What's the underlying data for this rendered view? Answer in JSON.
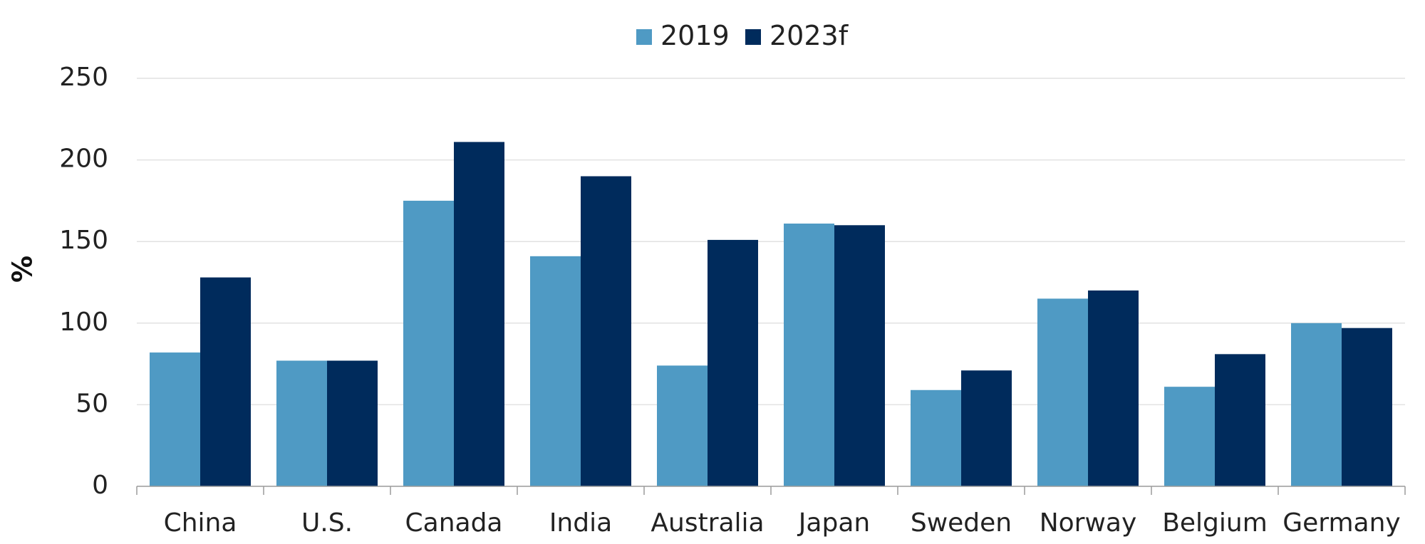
{
  "chart_data": {
    "type": "bar",
    "title": "",
    "xlabel": "",
    "ylabel": "%",
    "ylim": [
      0,
      250
    ],
    "yticks": [
      0,
      50,
      100,
      150,
      200,
      250
    ],
    "grid": true,
    "legend_position": "top-center",
    "categories": [
      "China",
      "U.S.",
      "Canada",
      "India",
      "Australia",
      "Japan",
      "Sweden",
      "Norway",
      "Belgium",
      "Germany"
    ],
    "series": [
      {
        "name": "2019",
        "color": "#4f9ac4",
        "values": [
          82,
          77,
          175,
          141,
          74,
          161,
          59,
          115,
          61,
          100
        ]
      },
      {
        "name": "2023f",
        "color": "#002b5c",
        "values": [
          128,
          77,
          211,
          190,
          151,
          160,
          71,
          120,
          81,
          97
        ]
      }
    ]
  }
}
